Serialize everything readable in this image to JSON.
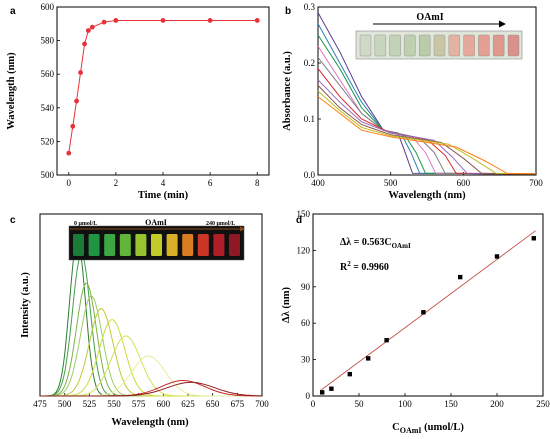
{
  "chart_data": [
    {
      "panel": "a",
      "type": "line",
      "xlabel": "Time (min)",
      "ylabel": "Wavelength (nm)",
      "xlim": [
        -0.5,
        8.5
      ],
      "ylim": [
        500,
        600
      ],
      "xticks": [
        0,
        2,
        4,
        6,
        8
      ],
      "yticks": [
        500,
        520,
        540,
        560,
        580,
        600
      ],
      "color": "#e8323a",
      "x": [
        0,
        0.17,
        0.33,
        0.5,
        0.67,
        0.83,
        1.0,
        1.5,
        2,
        4,
        6,
        8
      ],
      "y": [
        513,
        529,
        544,
        561,
        578,
        586,
        588,
        591,
        592,
        592,
        592,
        592
      ]
    },
    {
      "panel": "b",
      "type": "line",
      "xlabel": "Wavelength (nm)",
      "ylabel": "Absorbance (a.u.)",
      "xlim": [
        400,
        700
      ],
      "ylim": [
        0,
        0.3
      ],
      "xticks": [
        400,
        500,
        600,
        700
      ],
      "yticks": [
        0.0,
        0.1,
        0.2,
        0.3
      ],
      "arrow_label": "OAmI",
      "series": [
        {
          "color": "#5b3a8c",
          "x": [
            400,
            430,
            460,
            490,
            510,
            520,
            530,
            700
          ],
          "y": [
            0.29,
            0.22,
            0.14,
            0.08,
            0.075,
            0.04,
            0.003,
            0.002
          ]
        },
        {
          "color": "#2c7fb8",
          "x": [
            400,
            430,
            460,
            490,
            515,
            528,
            540,
            700
          ],
          "y": [
            0.27,
            0.2,
            0.13,
            0.08,
            0.072,
            0.04,
            0.003,
            0.002
          ]
        },
        {
          "color": "#1a9641",
          "x": [
            400,
            430,
            460,
            490,
            520,
            535,
            548,
            700
          ],
          "y": [
            0.25,
            0.19,
            0.12,
            0.08,
            0.07,
            0.04,
            0.003,
            0.002
          ]
        },
        {
          "color": "#e377c2",
          "x": [
            400,
            430,
            460,
            490,
            530,
            548,
            562,
            700
          ],
          "y": [
            0.23,
            0.17,
            0.11,
            0.08,
            0.068,
            0.04,
            0.003,
            0.002
          ]
        },
        {
          "color": "#7f7f7f",
          "x": [
            400,
            430,
            460,
            490,
            540,
            560,
            575,
            700
          ],
          "y": [
            0.21,
            0.16,
            0.11,
            0.08,
            0.066,
            0.04,
            0.003,
            0.002
          ]
        },
        {
          "color": "#d62728",
          "x": [
            400,
            430,
            460,
            500,
            550,
            575,
            590,
            700
          ],
          "y": [
            0.19,
            0.14,
            0.1,
            0.075,
            0.064,
            0.035,
            0.003,
            0.002
          ]
        },
        {
          "color": "#9467bd",
          "x": [
            400,
            430,
            460,
            500,
            560,
            585,
            605,
            700
          ],
          "y": [
            0.17,
            0.13,
            0.095,
            0.075,
            0.062,
            0.032,
            0.003,
            0.002
          ]
        },
        {
          "color": "#8c564b",
          "x": [
            400,
            430,
            460,
            500,
            570,
            600,
            625,
            700
          ],
          "y": [
            0.16,
            0.12,
            0.09,
            0.072,
            0.058,
            0.03,
            0.003,
            0.002
          ]
        },
        {
          "color": "#bcbd22",
          "x": [
            400,
            430,
            460,
            500,
            580,
            615,
            645,
            700
          ],
          "y": [
            0.15,
            0.115,
            0.085,
            0.07,
            0.055,
            0.028,
            0.003,
            0.002
          ]
        },
        {
          "color": "#ff7f0e",
          "x": [
            400,
            430,
            460,
            500,
            590,
            630,
            660,
            700
          ],
          "y": [
            0.14,
            0.11,
            0.08,
            0.068,
            0.05,
            0.025,
            0.003,
            0.002
          ]
        }
      ]
    },
    {
      "panel": "c",
      "type": "line",
      "xlabel": "Wavelength (nm)",
      "ylabel": "Intensity (a.u.)",
      "xlim": [
        475,
        700
      ],
      "ylim": [
        0,
        1.0
      ],
      "xticks": [
        475,
        500,
        525,
        550,
        575,
        600,
        625,
        650,
        675,
        700
      ],
      "yticks": [],
      "inset_left": "0 μmol/L",
      "inset_mid": "OAmI",
      "inset_right": "240 μmol/L",
      "series": [
        {
          "color": "#2e7d32",
          "center": 513,
          "height": 0.86,
          "width": 8
        },
        {
          "color": "#43a047",
          "center": 517,
          "height": 0.78,
          "width": 9
        },
        {
          "color": "#7cb342",
          "center": 522,
          "height": 0.62,
          "width": 10
        },
        {
          "color": "#9ccc65",
          "center": 527,
          "height": 0.55,
          "width": 11
        },
        {
          "color": "#c0ca33",
          "center": 537,
          "height": 0.48,
          "width": 12
        },
        {
          "color": "#cddc39",
          "center": 548,
          "height": 0.42,
          "width": 13
        },
        {
          "color": "#d4e157",
          "center": 562,
          "height": 0.33,
          "width": 15
        },
        {
          "color": "#e6ee9c",
          "center": 585,
          "height": 0.22,
          "width": 17
        },
        {
          "color": "#c62828",
          "center": 620,
          "height": 0.085,
          "width": 22
        },
        {
          "color": "#8d1b1b",
          "center": 628,
          "height": 0.075,
          "width": 24
        }
      ]
    },
    {
      "panel": "d",
      "type": "scatter",
      "xlabel": "C",
      "xlabel_sub": "OAmI",
      "xlabel_unit": " (umol/L)",
      "ylabel": "Δλ (nm)",
      "xlim": [
        0,
        250
      ],
      "ylim": [
        0,
        150
      ],
      "xticks": [
        0,
        50,
        100,
        150,
        200,
        250
      ],
      "yticks": [
        0,
        30,
        60,
        90,
        120,
        150
      ],
      "x": [
        10,
        20,
        40,
        60,
        80,
        120,
        160,
        200,
        240
      ],
      "y": [
        3,
        6,
        18,
        31,
        46,
        69,
        98,
        115,
        130
      ],
      "fit": {
        "slope": 0.563,
        "intercept": 0,
        "color": "#c0504d"
      },
      "equation_text": "Δλ = 0.563C",
      "equation_sub": "OAmI",
      "r2_label": "R",
      "r2_sup": "2",
      "r2_value": " = 0.9960"
    }
  ]
}
